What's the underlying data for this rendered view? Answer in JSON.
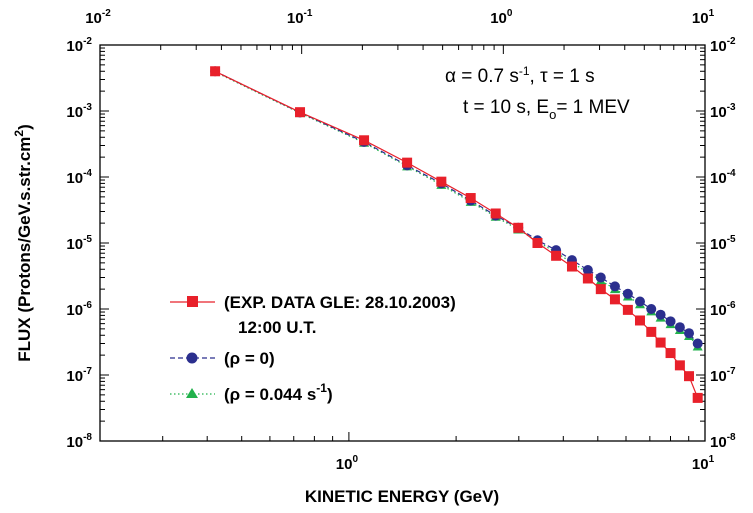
{
  "chart_data": {
    "type": "line",
    "xlabel": "KINETIC  ENERGY (GeV)",
    "ylabel": "FLUX (Protons/GeV.s.str.cm",
    "ylabel_sup": "2",
    "ylabel_end": ")",
    "x_scale": "log",
    "y_scale": "log",
    "xlim": [
      0.2,
      10
    ],
    "ylim": [
      1e-08,
      0.01
    ],
    "top_xlim": [
      0.01,
      10
    ],
    "grid": false,
    "legend_position": "left",
    "bottom_ticks": [
      {
        "base": "10",
        "exp": "0",
        "value": 1
      },
      {
        "base": "10",
        "exp": "1",
        "value": 10
      }
    ],
    "top_ticks": [
      {
        "base": "10",
        "exp": "-2",
        "value": 0.01
      },
      {
        "base": "10",
        "exp": "-1",
        "value": 0.1
      },
      {
        "base": "10",
        "exp": "0",
        "value": 1
      },
      {
        "base": "10",
        "exp": "1",
        "value": 10
      }
    ],
    "y_ticks": [
      {
        "base": "10",
        "exp": "-2",
        "value": 0.01
      },
      {
        "base": "10",
        "exp": "-3",
        "value": 0.001
      },
      {
        "base": "10",
        "exp": "-4",
        "value": 0.0001
      },
      {
        "base": "10",
        "exp": "-5",
        "value": 1e-05
      },
      {
        "base": "10",
        "exp": "-6",
        "value": 1e-06
      },
      {
        "base": "10",
        "exp": "-7",
        "value": 1e-07
      },
      {
        "base": "10",
        "exp": "-8",
        "value": 1e-08
      }
    ],
    "annotations": [
      {
        "pre": "α = 0.7 s",
        "sup": "-1",
        "post": ", τ = 1 s"
      },
      {
        "pre": "t = 10 s,    E",
        "sub": "o",
        "post": "= 1 MEV"
      }
    ],
    "series": [
      {
        "name": "(EXP. DATA GLE: 28.10.2003)",
        "name_line2": "12:00 U.T.",
        "color": "#e8202a",
        "marker": "square",
        "dash": "solid",
        "x": [
          0.421,
          0.729,
          1.103,
          1.457,
          1.818,
          2.198,
          2.584,
          2.989,
          3.385,
          3.818,
          4.231,
          4.689,
          5.098,
          5.586,
          6.073,
          6.568,
          7.065,
          7.505,
          8.003,
          8.501,
          9.018,
          9.538
        ],
        "y": [
          0.004,
          0.00096,
          0.00036,
          0.000165,
          8.5e-05,
          4.8e-05,
          2.8e-05,
          1.7e-05,
          1e-05,
          6.4e-06,
          4.4e-06,
          2.9e-06,
          2e-06,
          1.4e-06,
          9.7e-07,
          6.7e-07,
          4.5e-07,
          3.1e-07,
          2.15e-07,
          1.4e-07,
          9.6e-08,
          4.5e-08
        ]
      },
      {
        "name": "(ρ = 0)",
        "color": "#2b2f8e",
        "marker": "circle",
        "dash": "dash",
        "x": [
          0.421,
          0.729,
          1.103,
          1.457,
          1.818,
          2.198,
          2.584,
          2.989,
          3.385,
          3.818,
          4.231,
          4.689,
          5.098,
          5.586,
          6.073,
          6.568,
          7.065,
          7.505,
          8.003,
          8.501,
          9.018,
          9.538
        ],
        "y": [
          0.004,
          0.00095,
          0.00034,
          0.00015,
          8e-05,
          4.4e-05,
          2.6e-05,
          1.7e-05,
          1.1e-05,
          7.8e-06,
          5.5e-06,
          3.9e-06,
          3e-06,
          2.2e-06,
          1.7e-06,
          1.3e-06,
          1e-06,
          8.2e-07,
          6.5e-07,
          5.3e-07,
          4.3e-07,
          3e-07
        ]
      },
      {
        "name": "(ρ = 0.044 s",
        "name_sup": "-1",
        "name_end": ")",
        "color": "#22b24c",
        "marker": "triangle",
        "dash": "dot",
        "x": [
          0.421,
          0.729,
          1.103,
          1.457,
          1.818,
          2.198,
          2.584,
          2.989,
          3.385,
          3.818,
          4.231,
          4.689,
          5.098,
          5.586,
          6.073,
          6.568,
          7.065,
          7.505,
          8.003,
          8.501,
          9.018,
          9.538
        ],
        "y": [
          0.0039,
          0.00093,
          0.00033,
          0.000145,
          7.6e-05,
          4.2e-05,
          2.5e-05,
          1.6e-05,
          1.05e-05,
          7.2e-06,
          5e-06,
          3.6e-06,
          2.7e-06,
          2e-06,
          1.55e-06,
          1.18e-06,
          9.2e-07,
          7.4e-07,
          5.9e-07,
          4.8e-07,
          3.9e-07,
          2.7e-07
        ]
      }
    ]
  }
}
